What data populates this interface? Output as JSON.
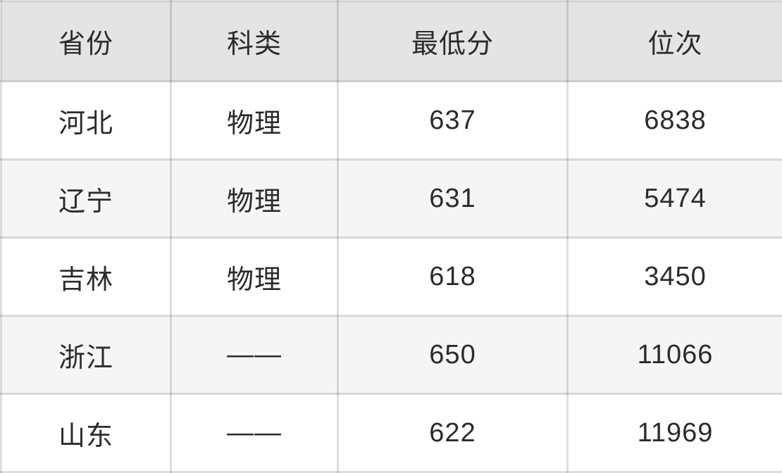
{
  "table": {
    "headers": [
      "省份",
      "科类",
      "最低分",
      "位次"
    ],
    "rows": [
      [
        "河北",
        "物理",
        "637",
        "6838"
      ],
      [
        "辽宁",
        "物理",
        "631",
        "5474"
      ],
      [
        "吉林",
        "物理",
        "618",
        "3450"
      ],
      [
        "浙江",
        "——",
        "650",
        "11066"
      ],
      [
        "山东",
        "——",
        "622",
        "11969"
      ]
    ]
  },
  "colors": {
    "header_bg": "#e4e4e4",
    "row_bg_odd": "#ffffff",
    "row_bg_even": "#f5f5f5",
    "border": "rgba(0,0,0,0.13)",
    "text": "#2b2b2b"
  },
  "chart_data": {
    "type": "table",
    "title": "",
    "columns": [
      "省份",
      "科类",
      "最低分",
      "位次"
    ],
    "rows": [
      {
        "province": "河北",
        "category": "物理",
        "min_score": 637,
        "rank": 6838
      },
      {
        "province": "辽宁",
        "category": "物理",
        "min_score": 631,
        "rank": 5474
      },
      {
        "province": "吉林",
        "category": "物理",
        "min_score": 618,
        "rank": 3450
      },
      {
        "province": "浙江",
        "category": "——",
        "min_score": 650,
        "rank": 11066
      },
      {
        "province": "山东",
        "category": "——",
        "min_score": 622,
        "rank": 11969
      }
    ]
  }
}
